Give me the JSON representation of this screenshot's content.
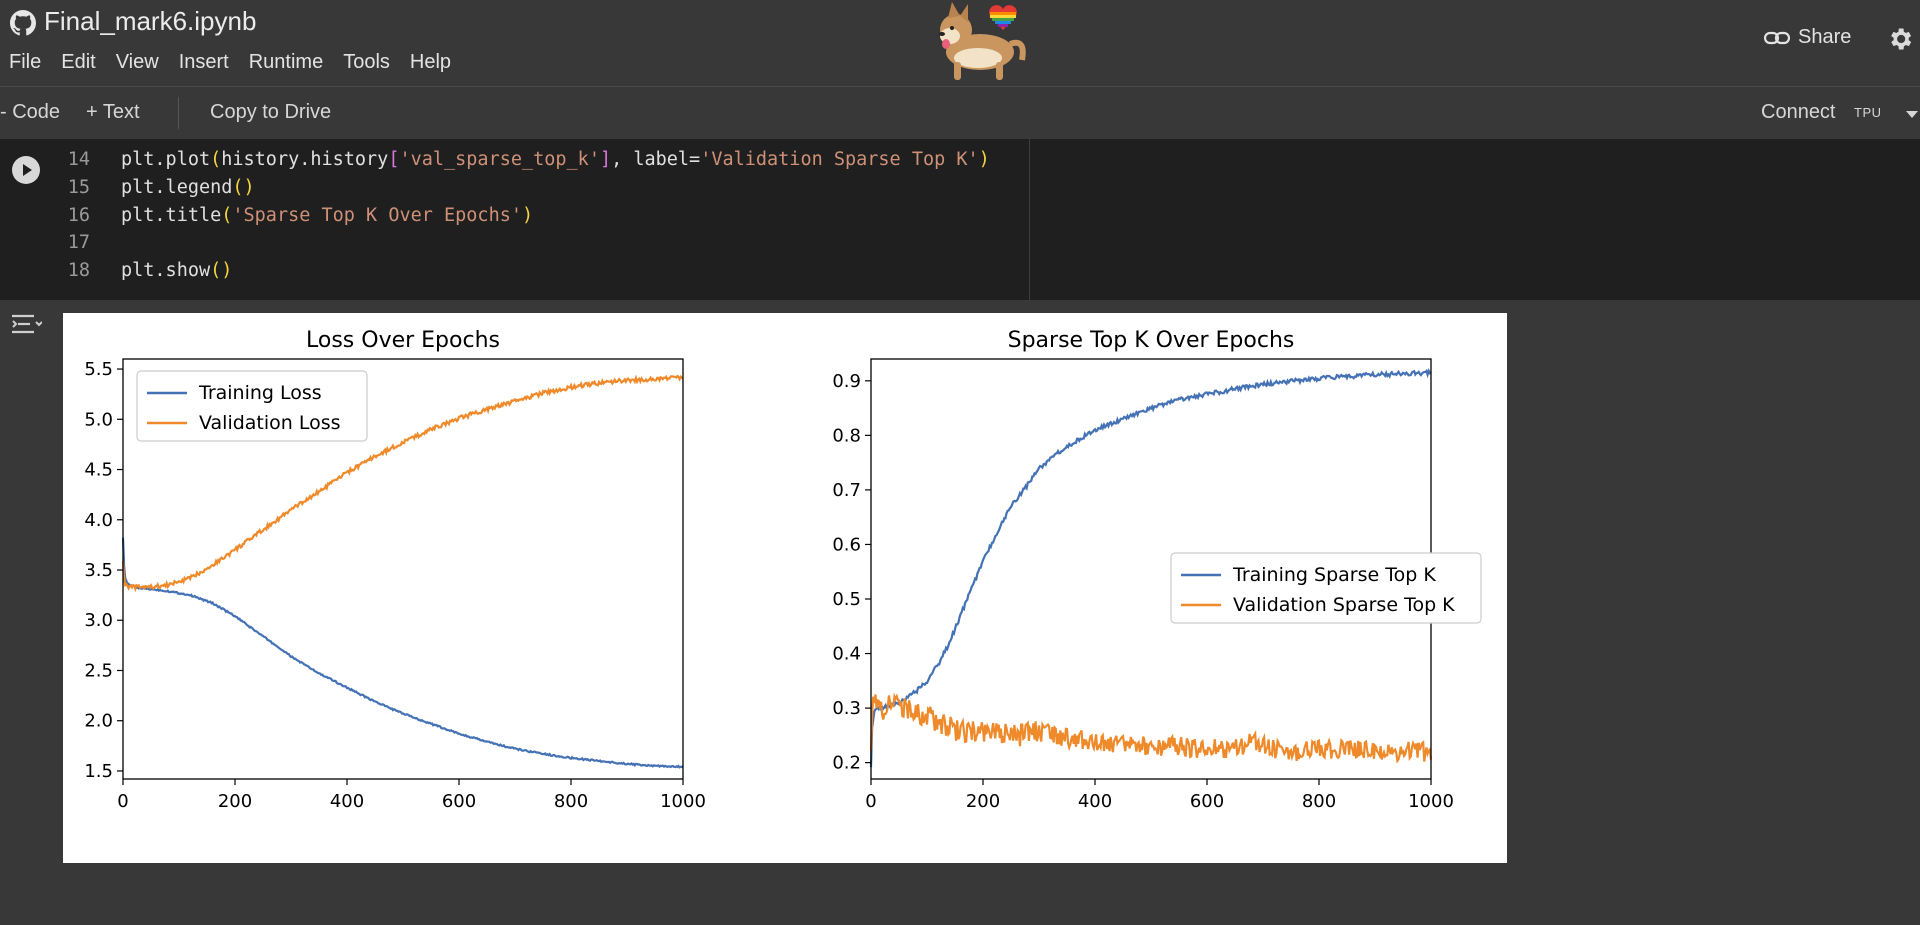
{
  "header": {
    "doc_title": "Final_mark6.ipynb",
    "menu": [
      "File",
      "Edit",
      "View",
      "Insert",
      "Runtime",
      "Tools",
      "Help"
    ],
    "share_label": "Share"
  },
  "toolbar": {
    "code_label": "Code",
    "text_label": "Text",
    "copy_label": "Copy to Drive",
    "connect_label": "Connect",
    "runtime_badge": "TPU"
  },
  "code_cell": {
    "lines": [
      {
        "n": "14",
        "text": "plt.plot(history.history['val_sparse_top_k'], label='Validation Sparse Top K')"
      },
      {
        "n": "15",
        "text": "plt.legend()"
      },
      {
        "n": "16",
        "text": "plt.title('Sparse Top K Over Epochs')"
      },
      {
        "n": "17",
        "text": ""
      },
      {
        "n": "18",
        "text": "plt.show()"
      }
    ]
  },
  "colors": {
    "train": "#4472b4",
    "val": "#ef8a2b"
  },
  "chart_data": [
    {
      "type": "line",
      "title": "Loss Over Epochs",
      "xlim": [
        0,
        1000
      ],
      "ylim": [
        1.42,
        5.6
      ],
      "xticks": [
        0,
        200,
        400,
        600,
        800,
        1000
      ],
      "yticks": [
        1.5,
        2.0,
        2.5,
        3.0,
        3.5,
        4.0,
        4.5,
        5.0,
        5.5
      ],
      "legend_position": "upper-left",
      "series": [
        {
          "name": "Training Loss",
          "x": [
            0,
            2,
            4,
            8,
            15,
            30,
            50,
            80,
            120,
            160,
            200,
            250,
            300,
            350,
            400,
            450,
            500,
            550,
            600,
            650,
            700,
            750,
            800,
            850,
            900,
            950,
            1000
          ],
          "y": [
            3.83,
            3.55,
            3.42,
            3.36,
            3.34,
            3.32,
            3.31,
            3.29,
            3.25,
            3.17,
            3.04,
            2.84,
            2.64,
            2.47,
            2.33,
            2.19,
            2.07,
            1.97,
            1.87,
            1.79,
            1.72,
            1.67,
            1.63,
            1.6,
            1.57,
            1.55,
            1.54
          ]
        },
        {
          "name": "Validation Loss",
          "x": [
            0,
            2,
            4,
            8,
            15,
            30,
            50,
            80,
            120,
            160,
            200,
            250,
            300,
            350,
            400,
            450,
            500,
            550,
            600,
            650,
            700,
            750,
            800,
            850,
            900,
            950,
            1000
          ],
          "y": [
            3.6,
            3.42,
            3.36,
            3.34,
            3.33,
            3.33,
            3.33,
            3.35,
            3.42,
            3.55,
            3.7,
            3.9,
            4.1,
            4.28,
            4.47,
            4.63,
            4.77,
            4.9,
            5.01,
            5.1,
            5.18,
            5.26,
            5.32,
            5.36,
            5.39,
            5.4,
            5.42
          ]
        }
      ]
    },
    {
      "type": "line",
      "title": "Sparse Top K Over Epochs",
      "xlim": [
        0,
        1000
      ],
      "ylim": [
        0.17,
        0.94
      ],
      "xticks": [
        0,
        200,
        400,
        600,
        800,
        1000
      ],
      "yticks": [
        0.2,
        0.3,
        0.4,
        0.5,
        0.6,
        0.7,
        0.8,
        0.9
      ],
      "legend_position": "center-right",
      "series": [
        {
          "name": "Training Sparse Top K",
          "x": [
            0,
            2,
            5,
            10,
            20,
            40,
            60,
            80,
            100,
            120,
            140,
            160,
            180,
            200,
            220,
            250,
            280,
            300,
            350,
            400,
            450,
            500,
            550,
            600,
            650,
            700,
            750,
            800,
            850,
            900,
            950,
            1000
          ],
          "y": [
            0.19,
            0.26,
            0.29,
            0.3,
            0.3,
            0.305,
            0.315,
            0.33,
            0.35,
            0.38,
            0.42,
            0.47,
            0.52,
            0.57,
            0.61,
            0.67,
            0.71,
            0.74,
            0.78,
            0.81,
            0.83,
            0.85,
            0.865,
            0.875,
            0.885,
            0.893,
            0.899,
            0.904,
            0.908,
            0.911,
            0.913,
            0.915
          ]
        },
        {
          "name": "Validation Sparse Top K",
          "x": [
            0,
            2,
            5,
            10,
            20,
            40,
            60,
            80,
            100,
            120,
            140,
            160,
            200,
            250,
            300,
            350,
            400,
            450,
            500,
            550,
            600,
            650,
            680,
            700,
            750,
            800,
            850,
            900,
            950,
            1000
          ],
          "y": [
            0.21,
            0.3,
            0.31,
            0.3,
            0.3,
            0.305,
            0.3,
            0.29,
            0.285,
            0.275,
            0.265,
            0.255,
            0.255,
            0.25,
            0.255,
            0.245,
            0.24,
            0.235,
            0.23,
            0.23,
            0.225,
            0.225,
            0.24,
            0.23,
            0.22,
            0.225,
            0.225,
            0.22,
            0.22,
            0.22
          ]
        }
      ]
    }
  ]
}
